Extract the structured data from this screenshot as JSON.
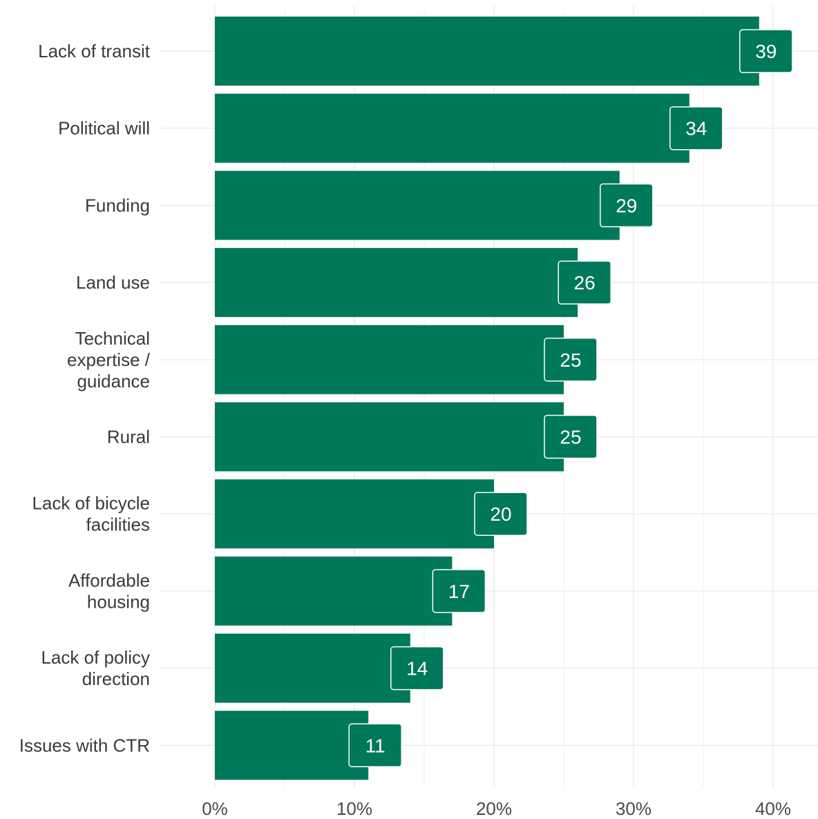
{
  "chart_data": {
    "type": "bar",
    "orientation": "horizontal",
    "categories": [
      "Lack of transit",
      "Political will",
      "Funding",
      "Land use",
      "Technical expertise / guidance",
      "Rural",
      "Lack of bicycle facilities",
      "Affordable housing",
      "Lack of policy direction",
      "Issues with CTR"
    ],
    "values": [
      39,
      34,
      29,
      26,
      25,
      25,
      20,
      17,
      14,
      11
    ],
    "data_labels": [
      "39",
      "34",
      "29",
      "26",
      "25",
      "25",
      "20",
      "17",
      "14",
      "11"
    ],
    "x_ticks": [
      0,
      10,
      20,
      30,
      40
    ],
    "x_tick_labels": [
      "0%",
      "10%",
      "20%",
      "30%",
      "40%"
    ],
    "xlim": [
      0,
      40
    ],
    "title": "",
    "xlabel": "",
    "ylabel": "",
    "grid": true,
    "legend": "none",
    "colors": {
      "bar": "#00785A",
      "label_border": "#ffffff",
      "grid": "#ebebeb",
      "text": "#3a3a3a"
    }
  }
}
